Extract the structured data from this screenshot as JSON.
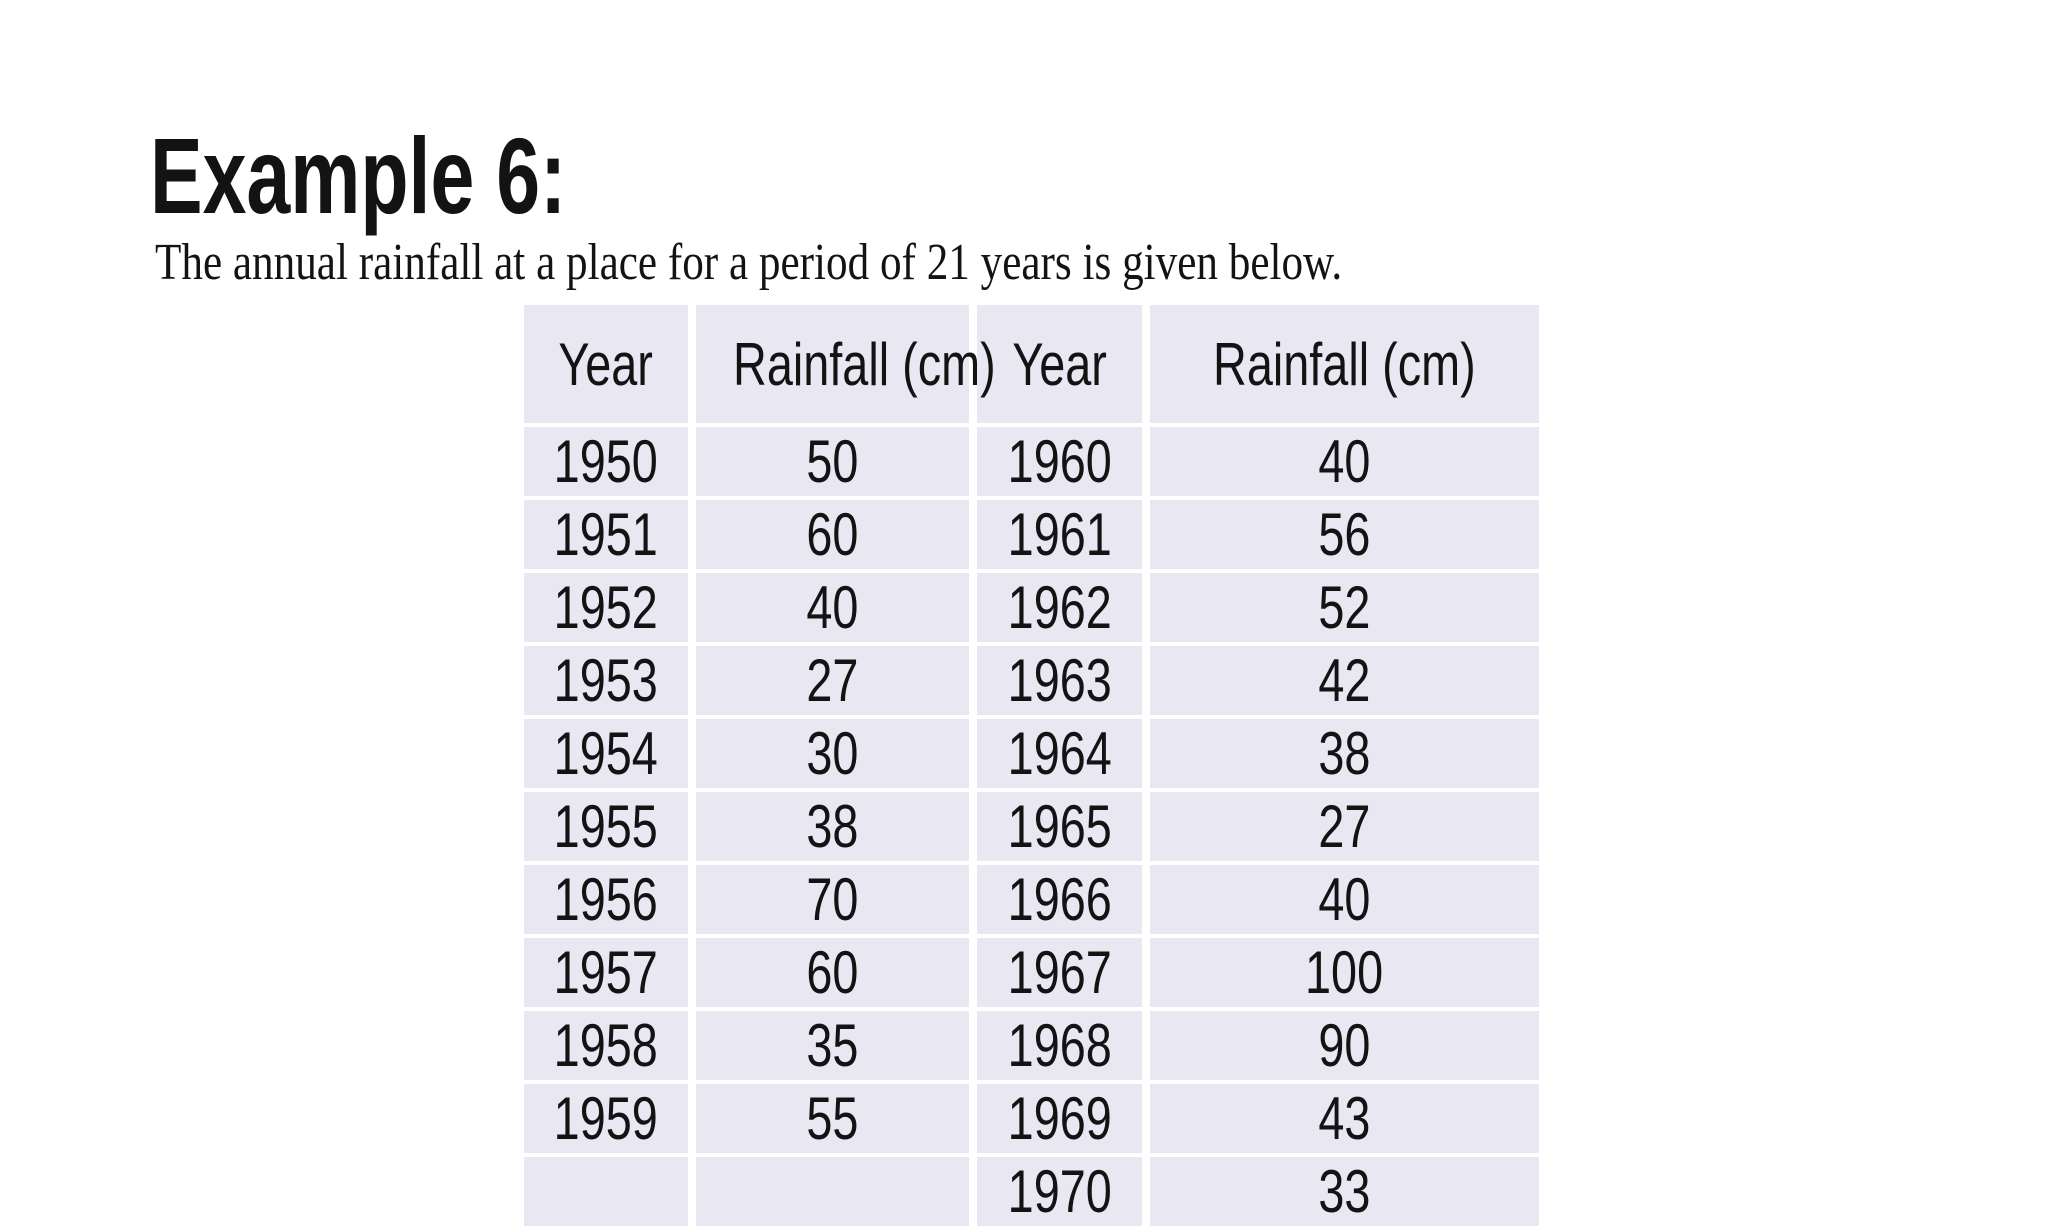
{
  "slide": {
    "title": "Example 6:",
    "subtitle": "The annual rainfall at a place for a period of 21 years is given below."
  },
  "table": {
    "headers": [
      "Year",
      "Rainfall (cm)",
      "Year",
      "Rainfall (cm)"
    ],
    "rows": [
      [
        "1950",
        "50",
        "1960",
        "40"
      ],
      [
        "1951",
        "60",
        "1961",
        "56"
      ],
      [
        "1952",
        "40",
        "1962",
        "52"
      ],
      [
        "1953",
        "27",
        "1963",
        "42"
      ],
      [
        "1954",
        "30",
        "1964",
        "38"
      ],
      [
        "1955",
        "38",
        "1965",
        "27"
      ],
      [
        "1956",
        "70",
        "1966",
        "40"
      ],
      [
        "1957",
        "60",
        "1967",
        "100"
      ],
      [
        "1958",
        "35",
        "1968",
        "90"
      ],
      [
        "1959",
        "55",
        "1969",
        "43"
      ],
      [
        "",
        "",
        "1970",
        "33"
      ]
    ]
  },
  "colors": {
    "background": "#ffffff",
    "cell_bg": "#e9e7f1",
    "separator": "#ffffff",
    "text_primary": "#131313"
  }
}
